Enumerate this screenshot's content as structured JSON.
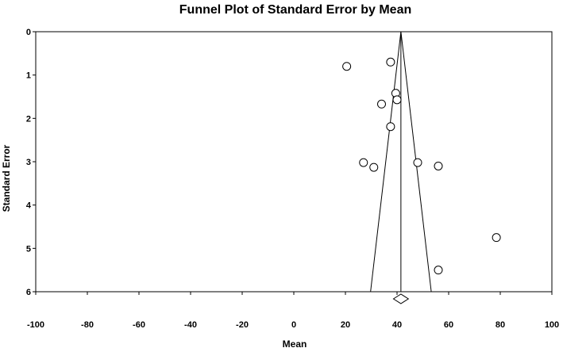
{
  "chart_data": {
    "type": "scatter",
    "title": "Funnel Plot of Standard Error by Mean",
    "xlabel": "Mean",
    "ylabel": "Standard Error",
    "xlim": [
      -100,
      100
    ],
    "ylim": [
      0,
      6
    ],
    "y_inverted": true,
    "x_ticks": [
      "-100",
      "-80",
      "-60",
      "-40",
      "-20",
      "0",
      "20",
      "40",
      "60",
      "80",
      "100"
    ],
    "y_ticks": [
      "0",
      "1",
      "2",
      "3",
      "4",
      "5",
      "6"
    ],
    "summary_mean": 41.5,
    "summary_ci": [
      38.6,
      44.4
    ],
    "funnel_base_se": 6,
    "points": [
      {
        "x": 20.5,
        "y": 0.8
      },
      {
        "x": 37.5,
        "y": 0.7
      },
      {
        "x": 39.5,
        "y": 1.42
      },
      {
        "x": 40.0,
        "y": 1.57
      },
      {
        "x": 34.0,
        "y": 1.67
      },
      {
        "x": 37.5,
        "y": 2.19
      },
      {
        "x": 27.0,
        "y": 3.02
      },
      {
        "x": 31.0,
        "y": 3.13
      },
      {
        "x": 48.0,
        "y": 3.02
      },
      {
        "x": 56.0,
        "y": 3.1
      },
      {
        "x": 78.5,
        "y": 4.75
      },
      {
        "x": 56.0,
        "y": 5.5
      }
    ]
  }
}
